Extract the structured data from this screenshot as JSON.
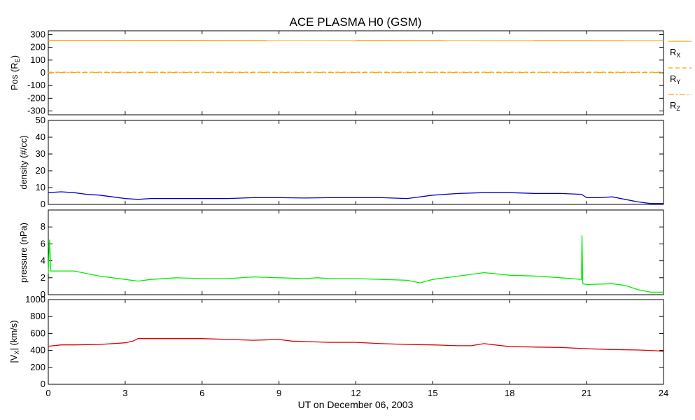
{
  "chart_data": {
    "type": "line",
    "title": "ACE PLASMA H0 (GSM)",
    "xlabel": "UT on December 06, 2003",
    "xlim": [
      0,
      24
    ],
    "xticks": [
      "0",
      "3",
      "6",
      "9",
      "12",
      "15",
      "18",
      "21",
      "24"
    ],
    "colors": {
      "position": "#ffa500",
      "density": "#0000cc",
      "pressure": "#00ee00",
      "velocity": "#dd0000",
      "axes": "#000000"
    },
    "panels": [
      {
        "id": "position",
        "ylabel_main": "Pos (R",
        "ylabel_sub": "E",
        "ylabel_end": ")",
        "ylim": [
          -330,
          330
        ],
        "yticks": [
          300,
          200,
          100,
          0,
          -100,
          -200,
          -300
        ],
        "ytick_labels": [
          "300",
          "200",
          "100",
          "0",
          "-100",
          "-200",
          "-300"
        ],
        "series": [
          {
            "name": "R",
            "sub": "X",
            "style": "solid",
            "x": [
              0,
              24
            ],
            "y": [
              255,
              253
            ]
          },
          {
            "name": "R",
            "sub": "Y",
            "style": "dashed",
            "x": [
              0,
              24
            ],
            "y": [
              5,
              5
            ]
          },
          {
            "name": "R",
            "sub": "Z",
            "style": "dashdot",
            "x": [
              0,
              24
            ],
            "y": [
              2,
              2
            ]
          }
        ]
      },
      {
        "id": "density",
        "ylabel": "density (#/cc)",
        "ylim": [
          0,
          50
        ],
        "yticks": [
          0,
          10,
          20,
          30,
          40,
          50
        ],
        "ytick_labels": [
          "0",
          "10",
          "20",
          "30",
          "40",
          "50"
        ],
        "series": [
          {
            "x": [
              0,
              0.5,
              1,
              1.5,
              2,
              2.5,
              3,
              3.5,
              4,
              5,
              6,
              7,
              8,
              9,
              10,
              11,
              12,
              13,
              14,
              15,
              16,
              17,
              18,
              19,
              20,
              20.8,
              21,
              21.5,
              22,
              22.5,
              23,
              23.5,
              24
            ],
            "y": [
              7,
              7.5,
              7,
              6,
              5.5,
              4.5,
              3.5,
              3,
              3.5,
              3.5,
              3.5,
              3.5,
              4,
              4,
              3.8,
              4,
              4,
              4,
              3.5,
              5.5,
              6.5,
              7,
              7,
              6.5,
              6.5,
              6,
              4,
              4,
              4.5,
              3,
              1.5,
              0.5,
              0.5
            ]
          }
        ]
      },
      {
        "id": "pressure",
        "ylabel": "pressure (nPa)",
        "ylim": [
          0,
          10
        ],
        "yticks": [
          0,
          2,
          4,
          6,
          8
        ],
        "ytick_labels": [
          "0",
          "2",
          "4",
          "6",
          "8"
        ],
        "series": [
          {
            "x": [
              0,
              0.05,
              0.1,
              0.5,
              1,
              1.5,
              2,
              2.5,
              3,
              3.5,
              4,
              5,
              6,
              7,
              8,
              9,
              10,
              10.5,
              11,
              12,
              13,
              14,
              14.5,
              15,
              16,
              17,
              18,
              19,
              20,
              20.8,
              20.82,
              20.85,
              21,
              22,
              22.5,
              23,
              23.5,
              24
            ],
            "y": [
              2.5,
              6.5,
              2.8,
              2.8,
              2.8,
              2.5,
              2.2,
              2,
              1.8,
              1.6,
              1.8,
              2,
              1.9,
              1.9,
              2.1,
              2,
              1.9,
              2,
              1.9,
              1.9,
              1.8,
              1.7,
              1.4,
              1.8,
              2.2,
              2.6,
              2.3,
              2.2,
              2,
              1.8,
              7,
              1.3,
              1.2,
              1.3,
              1.1,
              0.6,
              0.3,
              0.3
            ]
          }
        ]
      },
      {
        "id": "velocity",
        "ylabel_main": "|V",
        "ylabel_sub": "X",
        "ylabel_end": "| (km/s)",
        "ylim": [
          0,
          1000
        ],
        "yticks": [
          0,
          200,
          400,
          600,
          800,
          1000
        ],
        "ytick_labels": [
          "0",
          "200",
          "400",
          "600",
          "800",
          "1000"
        ],
        "series": [
          {
            "x": [
              0,
              0.5,
              1,
              2,
              3,
              3.3,
              3.5,
              4,
              5,
              6,
              7,
              8,
              9,
              9.5,
              10,
              11,
              12,
              13,
              14,
              15,
              16,
              16.5,
              17,
              18,
              19,
              20,
              21,
              22,
              23,
              23.5,
              24
            ],
            "y": [
              450,
              465,
              465,
              470,
              490,
              510,
              540,
              540,
              540,
              540,
              530,
              520,
              530,
              510,
              505,
              495,
              495,
              480,
              470,
              465,
              455,
              455,
              480,
              445,
              440,
              435,
              420,
              410,
              405,
              400,
              390
            ]
          }
        ]
      }
    ]
  }
}
